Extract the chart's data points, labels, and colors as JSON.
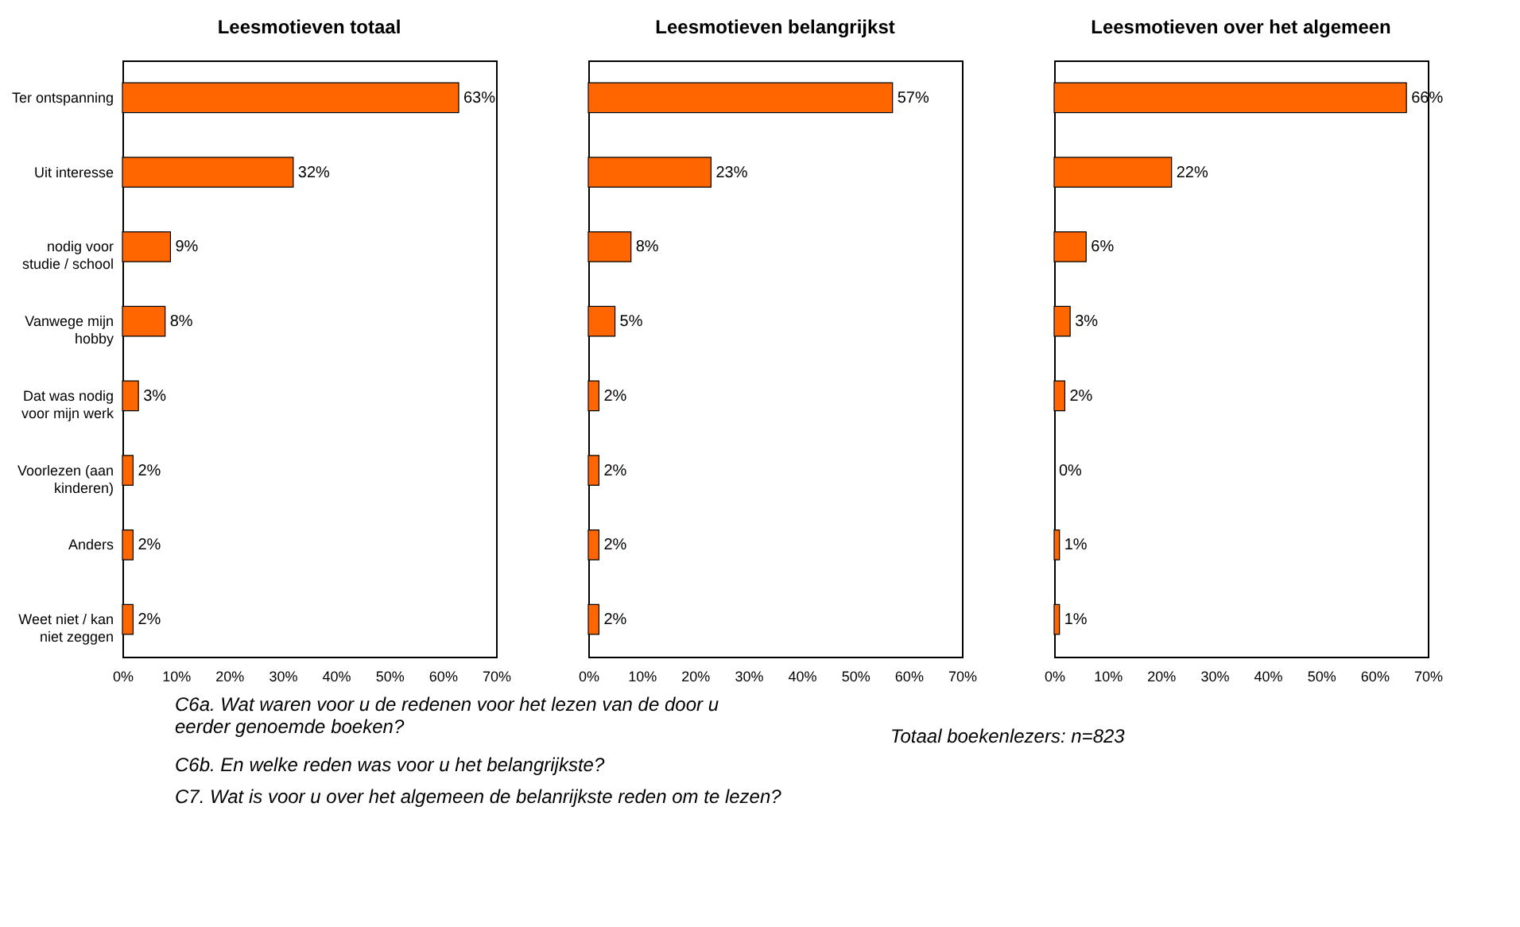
{
  "chart_data": [
    {
      "type": "bar",
      "orientation": "horizontal",
      "title": "Leesmotieven totaal",
      "categories": [
        "Ter ontspanning",
        "Uit interesse",
        "nodig voor studie / school",
        "Vanwege mijn hobby",
        "Dat was nodig voor mijn werk",
        "Voorlezen (aan kinderen)",
        "Anders",
        "Weet niet / kan niet zeggen"
      ],
      "values": [
        63,
        32,
        9,
        8,
        3,
        2,
        2,
        2
      ],
      "value_labels": [
        "63%",
        "32%",
        "9%",
        "8%",
        "3%",
        "2%",
        "2%",
        "2%"
      ],
      "color": "#ff6600",
      "xlim": [
        0,
        70
      ],
      "xticks": [
        {
          "value": 0,
          "label": "0%"
        },
        {
          "value": 10,
          "label": "10%"
        },
        {
          "value": 20,
          "label": "20%"
        },
        {
          "value": 30,
          "label": "30%"
        },
        {
          "value": 40,
          "label": "40%"
        },
        {
          "value": 50,
          "label": "50%"
        },
        {
          "value": 60,
          "label": "60%"
        },
        {
          "value": 70,
          "label": "70%"
        }
      ],
      "annotations": [
        "C6a. Wat waren voor u de redenen voor het lezen van de door u eerder genoemde boeken?",
        "C6b. En welke reden was voor u het belangrijkste?",
        "C7. Wat is voor u over het algemeen de belanrijkste reden om te lezen?",
        "Totaal boekenlezers: n=823"
      ]
    },
    {
      "type": "bar",
      "orientation": "horizontal",
      "title": "Leesmotieven belangrijkst",
      "categories": [
        null,
        null,
        null,
        null,
        null,
        null,
        null,
        null
      ],
      "values": [
        57,
        23,
        8,
        5,
        2,
        2,
        2,
        2
      ],
      "value_labels": [
        "57%",
        "23%",
        "8%",
        "5%",
        "2%",
        "2%",
        "2%",
        "2%"
      ],
      "color": "#ff6600",
      "tick_labels": "x",
      "xlim": [
        0,
        70
      ],
      "xticks": [
        {
          "value": 0,
          "label": "0%"
        },
        {
          "value": 10,
          "label": "10%"
        },
        {
          "value": 20,
          "label": "20%"
        },
        {
          "value": 30,
          "label": "30%"
        },
        {
          "value": 40,
          "label": "40%"
        },
        {
          "value": 50,
          "label": "50%"
        },
        {
          "value": 60,
          "label": "60%"
        },
        {
          "value": 70,
          "label": "70%"
        }
      ]
    },
    {
      "type": "bar",
      "orientation": "horizontal",
      "title": "Leesmotieven over het algemeen",
      "categories": [
        null,
        null,
        null,
        null,
        null,
        null,
        null,
        null
      ],
      "values": [
        66,
        22,
        6,
        3,
        2,
        0,
        1,
        1
      ],
      "value_labels": [
        "66%",
        "22%",
        "6%",
        "3%",
        "2%",
        "0%",
        "1%",
        "1%"
      ],
      "color": "#ff6600",
      "tick_labels": "x",
      "xlim": [
        0,
        70
      ],
      "xticks": [
        {
          "value": 0,
          "label": "0%"
        },
        {
          "value": 10,
          "label": "10%"
        },
        {
          "value": 20,
          "label": "20%"
        },
        {
          "value": 30,
          "label": "30%"
        },
        {
          "value": 40,
          "label": "40%"
        },
        {
          "value": 50,
          "label": "50%"
        },
        {
          "value": 60,
          "label": "60%"
        },
        {
          "value": 70,
          "label": "70%"
        }
      ]
    }
  ]
}
